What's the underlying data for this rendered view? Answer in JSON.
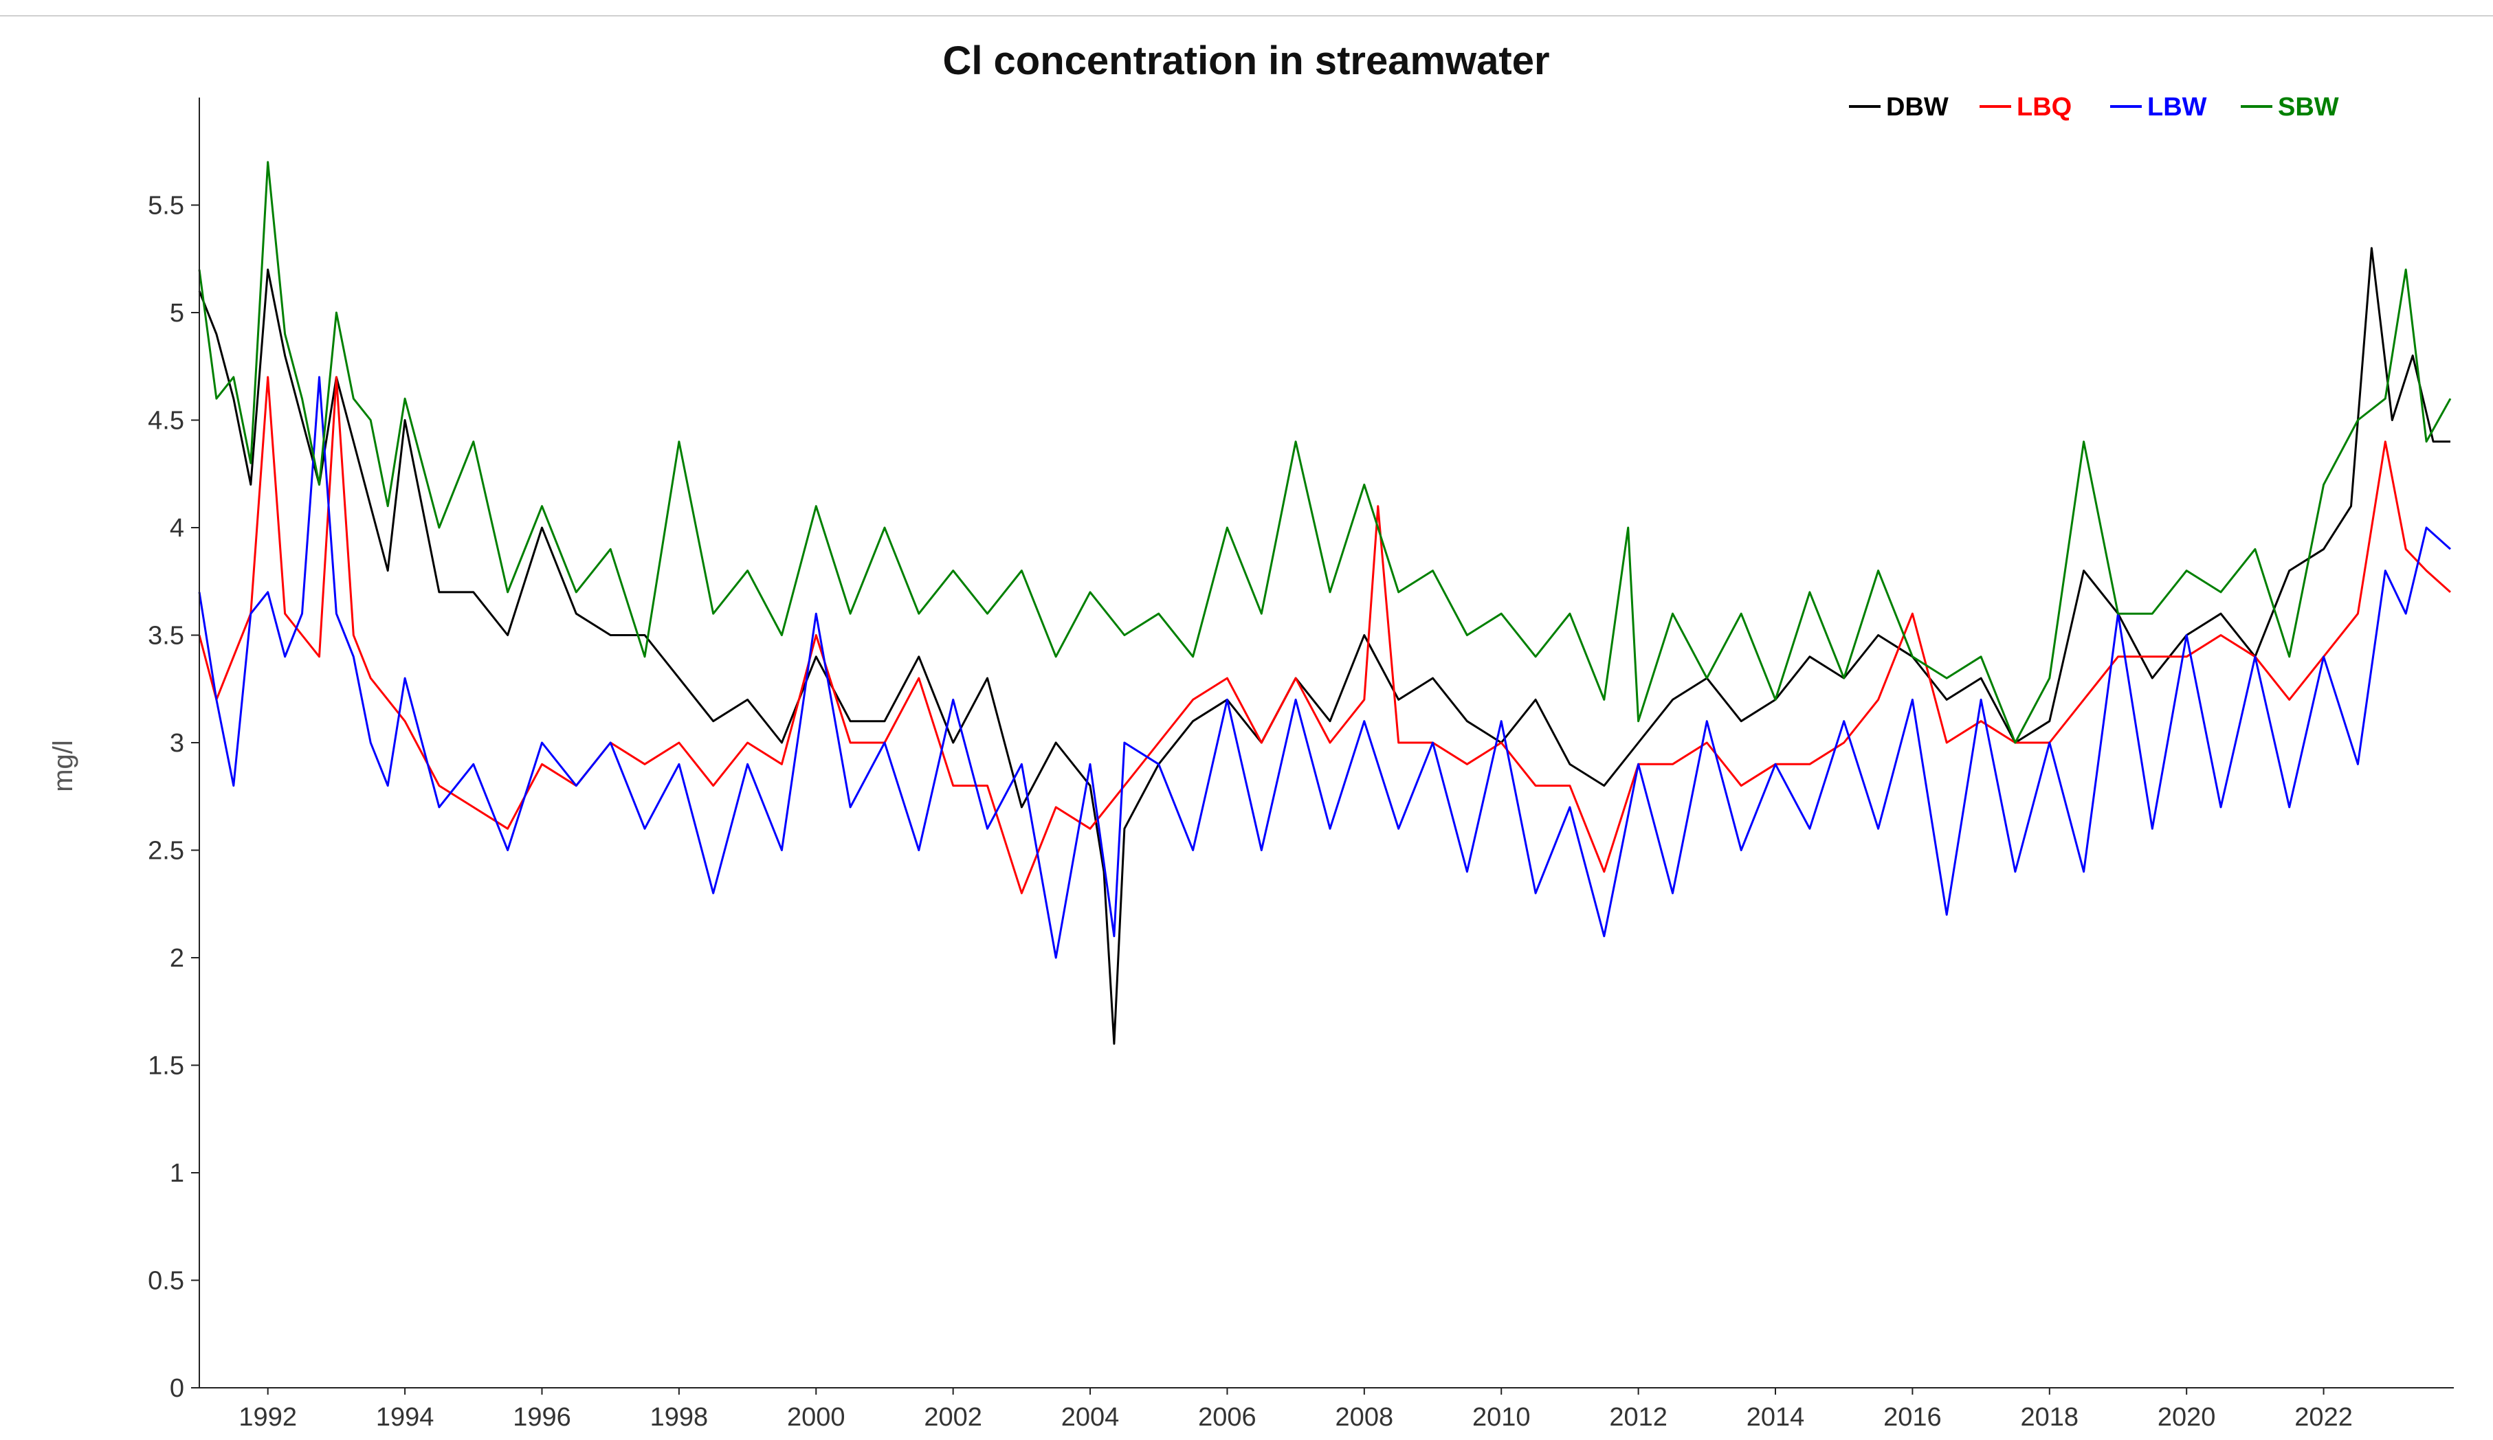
{
  "chart_data": {
    "type": "line",
    "title": "Cl concentration in streamwater",
    "xlabel": "",
    "ylabel": "mg/l",
    "xlim": [
      1991.0,
      2023.9
    ],
    "ylim": [
      0,
      6.0
    ],
    "x_ticks": [
      1992,
      1994,
      1996,
      1998,
      2000,
      2002,
      2004,
      2006,
      2008,
      2010,
      2012,
      2014,
      2016,
      2018,
      2020,
      2022
    ],
    "x_tick_labels": [
      "1992",
      "1994",
      "1996",
      "1998",
      "2000",
      "2002",
      "2004",
      "2006",
      "2008",
      "2010",
      "2012",
      "2014",
      "2016",
      "2018",
      "2020",
      "2022"
    ],
    "y_ticks": [
      0,
      0.5,
      1,
      1.5,
      2,
      2.5,
      3,
      3.5,
      4,
      4.5,
      5,
      5.5
    ],
    "y_tick_labels": [
      "0",
      "0.5",
      "1",
      "1.5",
      "2",
      "2.5",
      "3",
      "3.5",
      "4",
      "4.5",
      "5",
      "5.5"
    ],
    "grid": false,
    "legend_position": "top-right",
    "series": [
      {
        "name": "DBW",
        "color": "#000000",
        "x": [
          1991.0,
          1991.25,
          1991.5,
          1991.75,
          1992.0,
          1992.25,
          1992.5,
          1992.75,
          1993.0,
          1993.25,
          1993.5,
          1993.75,
          1994.0,
          1994.5,
          1995.0,
          1995.5,
          1996.0,
          1996.5,
          1997.0,
          1997.5,
          1998.0,
          1998.5,
          1999.0,
          1999.5,
          2000.0,
          2000.5,
          2001.0,
          2001.5,
          2002.0,
          2002.5,
          2003.0,
          2003.5,
          2004.0,
          2004.2,
          2004.35,
          2004.5,
          2005.0,
          2005.5,
          2006.0,
          2006.5,
          2007.0,
          2007.5,
          2008.0,
          2008.5,
          2009.0,
          2009.5,
          2010.0,
          2010.5,
          2011.0,
          2011.5,
          2012.0,
          2012.5,
          2013.0,
          2013.5,
          2014.0,
          2014.5,
          2015.0,
          2015.5,
          2016.0,
          2016.5,
          2017.0,
          2017.5,
          2018.0,
          2018.5,
          2019.0,
          2019.5,
          2020.0,
          2020.5,
          2021.0,
          2021.5,
          2022.0,
          2022.4,
          2022.7,
          2023.0,
          2023.3,
          2023.6,
          2023.85
        ],
        "values": [
          5.1,
          4.9,
          4.6,
          4.2,
          5.2,
          4.8,
          4.5,
          4.2,
          4.7,
          4.4,
          4.1,
          3.8,
          4.5,
          3.7,
          3.7,
          3.5,
          4.0,
          3.6,
          3.5,
          3.5,
          3.3,
          3.1,
          3.2,
          3.0,
          3.4,
          3.1,
          3.1,
          3.4,
          3.0,
          3.3,
          2.7,
          3.0,
          2.8,
          2.4,
          1.6,
          2.6,
          2.9,
          3.1,
          3.2,
          3.0,
          3.3,
          3.1,
          3.5,
          3.2,
          3.3,
          3.1,
          3.0,
          3.2,
          2.9,
          2.8,
          3.0,
          3.2,
          3.3,
          3.1,
          3.2,
          3.4,
          3.3,
          3.5,
          3.4,
          3.2,
          3.3,
          3.0,
          3.1,
          3.8,
          3.6,
          3.3,
          3.5,
          3.6,
          3.4,
          3.8,
          3.9,
          4.1,
          5.3,
          4.5,
          4.8,
          4.4,
          4.4
        ]
      },
      {
        "name": "LBQ",
        "color": "#ff0000",
        "x": [
          1991.0,
          1991.25,
          1991.5,
          1991.75,
          1992.0,
          1992.25,
          1992.5,
          1992.75,
          1993.0,
          1993.25,
          1993.5,
          1993.75,
          1994.0,
          1994.5,
          1995.0,
          1995.5,
          1996.0,
          1996.5,
          1997.0,
          1997.5,
          1998.0,
          1998.5,
          1999.0,
          1999.5,
          2000.0,
          2000.5,
          2001.0,
          2001.5,
          2002.0,
          2002.5,
          2003.0,
          2003.5,
          2004.0,
          2004.5,
          2005.0,
          2005.5,
          2006.0,
          2006.5,
          2007.0,
          2007.5,
          2008.0,
          2008.2,
          2008.5,
          2009.0,
          2009.5,
          2010.0,
          2010.5,
          2011.0,
          2011.5,
          2012.0,
          2012.5,
          2013.0,
          2013.5,
          2014.0,
          2014.5,
          2015.0,
          2015.5,
          2016.0,
          2016.5,
          2017.0,
          2017.5,
          2018.0,
          2018.5,
          2019.0,
          2019.5,
          2020.0,
          2020.5,
          2021.0,
          2021.5,
          2022.0,
          2022.5,
          2022.9,
          2023.2,
          2023.5,
          2023.85
        ],
        "values": [
          3.5,
          3.2,
          3.4,
          3.6,
          4.7,
          3.6,
          3.5,
          3.4,
          4.7,
          3.5,
          3.3,
          3.2,
          3.1,
          2.8,
          2.7,
          2.6,
          2.9,
          2.8,
          3.0,
          2.9,
          3.0,
          2.8,
          3.0,
          2.9,
          3.5,
          3.0,
          3.0,
          3.3,
          2.8,
          2.8,
          2.3,
          2.7,
          2.6,
          2.8,
          3.0,
          3.2,
          3.3,
          3.0,
          3.3,
          3.0,
          3.2,
          4.1,
          3.0,
          3.0,
          2.9,
          3.0,
          2.8,
          2.8,
          2.4,
          2.9,
          2.9,
          3.0,
          2.8,
          2.9,
          2.9,
          3.0,
          3.2,
          3.6,
          3.0,
          3.1,
          3.0,
          3.0,
          3.2,
          3.4,
          3.4,
          3.4,
          3.5,
          3.4,
          3.2,
          3.4,
          3.6,
          4.4,
          3.9,
          3.8,
          3.7
        ]
      },
      {
        "name": "LBW",
        "color": "#0000ff",
        "x": [
          1991.0,
          1991.25,
          1991.5,
          1991.75,
          1992.0,
          1992.25,
          1992.5,
          1992.75,
          1993.0,
          1993.25,
          1993.5,
          1993.75,
          1994.0,
          1994.5,
          1995.0,
          1995.5,
          1996.0,
          1996.5,
          1997.0,
          1997.5,
          1998.0,
          1998.5,
          1999.0,
          1999.5,
          2000.0,
          2000.5,
          2001.0,
          2001.5,
          2002.0,
          2002.5,
          2003.0,
          2003.5,
          2004.0,
          2004.35,
          2004.5,
          2005.0,
          2005.5,
          2006.0,
          2006.5,
          2007.0,
          2007.5,
          2008.0,
          2008.5,
          2009.0,
          2009.5,
          2010.0,
          2010.5,
          2011.0,
          2011.5,
          2012.0,
          2012.5,
          2013.0,
          2013.5,
          2014.0,
          2014.5,
          2015.0,
          2015.5,
          2016.0,
          2016.5,
          2017.0,
          2017.5,
          2018.0,
          2018.5,
          2019.0,
          2019.5,
          2020.0,
          2020.5,
          2021.0,
          2021.5,
          2022.0,
          2022.5,
          2022.9,
          2023.2,
          2023.5,
          2023.85
        ],
        "values": [
          3.7,
          3.2,
          2.8,
          3.6,
          3.7,
          3.4,
          3.6,
          4.7,
          3.6,
          3.4,
          3.0,
          2.8,
          3.3,
          2.7,
          2.9,
          2.5,
          3.0,
          2.8,
          3.0,
          2.6,
          2.9,
          2.3,
          2.9,
          2.5,
          3.6,
          2.7,
          3.0,
          2.5,
          3.2,
          2.6,
          2.9,
          2.0,
          2.9,
          2.1,
          3.0,
          2.9,
          2.5,
          3.2,
          2.5,
          3.2,
          2.6,
          3.1,
          2.6,
          3.0,
          2.4,
          3.1,
          2.3,
          2.7,
          2.1,
          2.9,
          2.3,
          3.1,
          2.5,
          2.9,
          2.6,
          3.1,
          2.6,
          3.2,
          2.2,
          3.2,
          2.4,
          3.0,
          2.4,
          3.6,
          2.6,
          3.5,
          2.7,
          3.4,
          2.7,
          3.4,
          2.9,
          3.8,
          3.6,
          4.0,
          3.9
        ]
      },
      {
        "name": "SBW",
        "color": "#008000",
        "x": [
          1991.0,
          1991.25,
          1991.5,
          1991.75,
          1992.0,
          1992.25,
          1992.5,
          1992.75,
          1993.0,
          1993.25,
          1993.5,
          1993.75,
          1994.0,
          1994.5,
          1995.0,
          1995.5,
          1996.0,
          1996.5,
          1997.0,
          1997.5,
          1998.0,
          1998.5,
          1999.0,
          1999.5,
          2000.0,
          2000.5,
          2001.0,
          2001.5,
          2002.0,
          2002.5,
          2003.0,
          2003.5,
          2004.0,
          2004.5,
          2005.0,
          2005.5,
          2006.0,
          2006.5,
          2007.0,
          2007.5,
          2008.0,
          2008.5,
          2009.0,
          2009.5,
          2010.0,
          2010.5,
          2011.0,
          2011.5,
          2011.85,
          2012.0,
          2012.5,
          2013.0,
          2013.5,
          2014.0,
          2014.5,
          2015.0,
          2015.5,
          2016.0,
          2016.5,
          2017.0,
          2017.5,
          2018.0,
          2018.5,
          2019.0,
          2019.5,
          2020.0,
          2020.5,
          2021.0,
          2021.5,
          2022.0,
          2022.5,
          2022.9,
          2023.2,
          2023.5,
          2023.85
        ],
        "values": [
          5.2,
          4.6,
          4.7,
          4.3,
          5.7,
          4.9,
          4.6,
          4.2,
          5.0,
          4.6,
          4.5,
          4.1,
          4.6,
          4.0,
          4.4,
          3.7,
          4.1,
          3.7,
          3.9,
          3.4,
          4.4,
          3.6,
          3.8,
          3.5,
          4.1,
          3.6,
          4.0,
          3.6,
          3.8,
          3.6,
          3.8,
          3.4,
          3.7,
          3.5,
          3.6,
          3.4,
          4.0,
          3.6,
          4.4,
          3.7,
          4.2,
          3.7,
          3.8,
          3.5,
          3.6,
          3.4,
          3.6,
          3.2,
          4.0,
          3.1,
          3.6,
          3.3,
          3.6,
          3.2,
          3.7,
          3.3,
          3.8,
          3.4,
          3.3,
          3.4,
          3.0,
          3.3,
          4.4,
          3.6,
          3.6,
          3.8,
          3.7,
          3.9,
          3.4,
          4.2,
          4.5,
          4.6,
          5.2,
          4.4,
          4.6
        ]
      }
    ]
  }
}
